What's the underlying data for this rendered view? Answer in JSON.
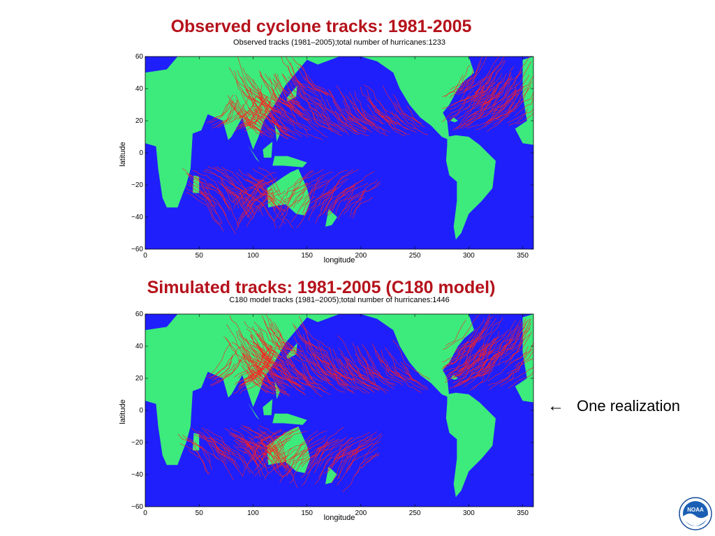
{
  "colors": {
    "ocean": "#1f1ffb",
    "land": "#3dea7c",
    "track": "#ff1f1f",
    "title": "#b5121b"
  },
  "slide": {
    "observed_title": "Observed cyclone tracks: 1981-2005",
    "simulated_title": "Simulated tracks: 1981-2005 (C180 model)",
    "annotation_arrow": "←",
    "annotation_text": "One realization",
    "logo_text": "NOAA"
  },
  "charts": [
    {
      "title": "Observed tracks (1981–2005);total number of hurricanes:1233",
      "xlabel": "longitude",
      "ylabel": "latitude",
      "xticks": [
        "0",
        "50",
        "100",
        "150",
        "200",
        "250",
        "300",
        "350"
      ],
      "yticks": [
        "60",
        "40",
        "20",
        "0",
        "−20",
        "−40",
        "−60"
      ]
    },
    {
      "title": "C180 model tracks (1981–2005);total number of hurricanes:1446",
      "xlabel": "longitude",
      "ylabel": "latitude",
      "xticks": [
        "0",
        "50",
        "100",
        "150",
        "200",
        "250",
        "300",
        "350"
      ],
      "yticks": [
        "60",
        "40",
        "20",
        "0",
        "−20",
        "−40",
        "−60"
      ]
    }
  ],
  "chart_data": [
    {
      "type": "map",
      "title": "Observed tracks (1981–2005);total number of hurricanes:1233",
      "xlabel": "longitude",
      "ylabel": "latitude",
      "xlim": [
        0,
        360
      ],
      "ylim": [
        -60,
        60
      ],
      "xticks": [
        0,
        50,
        100,
        150,
        200,
        250,
        300,
        350
      ],
      "yticks": [
        60,
        40,
        20,
        0,
        -20,
        -40,
        -60
      ],
      "total_hurricanes": 1233
    },
    {
      "type": "map",
      "title": "C180 model tracks (1981–2005);total number of hurricanes:1446",
      "xlabel": "longitude",
      "ylabel": "latitude",
      "xlim": [
        0,
        360
      ],
      "ylim": [
        -60,
        60
      ],
      "xticks": [
        0,
        50,
        100,
        150,
        200,
        250,
        300,
        350
      ],
      "yticks": [
        60,
        40,
        20,
        0,
        -20,
        -40,
        -60
      ],
      "total_hurricanes": 1446
    }
  ]
}
